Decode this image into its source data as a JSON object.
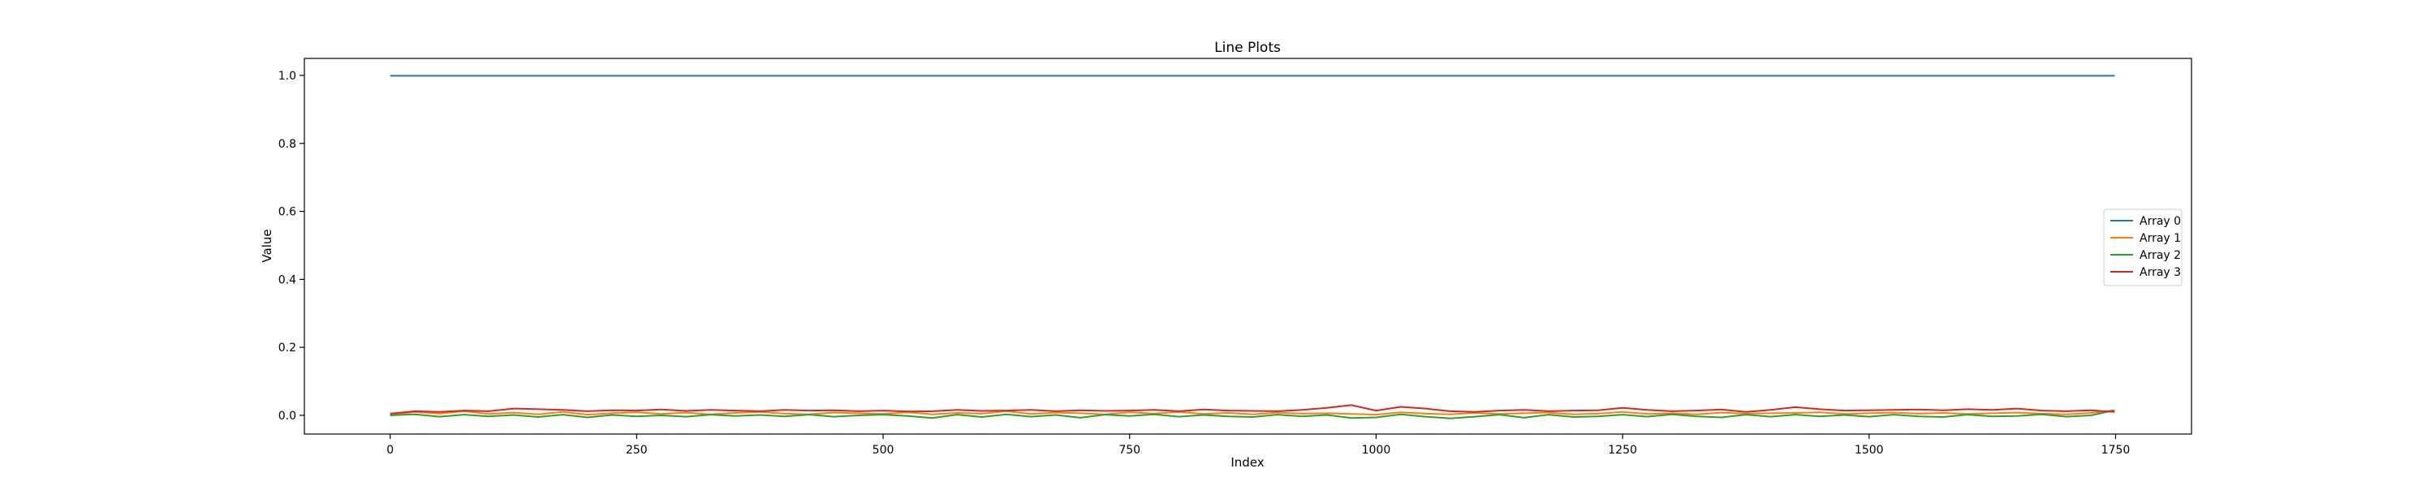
{
  "chart_data": {
    "type": "line",
    "title": "Line Plots",
    "xlabel": "Index",
    "ylabel": "Value",
    "xlim": [
      -87,
      1827
    ],
    "ylim": [
      -0.055,
      1.05
    ],
    "x_ticks": [
      0,
      250,
      500,
      750,
      1000,
      1250,
      1500,
      1750
    ],
    "y_ticks": [
      0.0,
      0.2,
      0.4,
      0.6,
      0.8,
      1.0
    ],
    "y_tick_labels": [
      "0.0",
      "0.2",
      "0.4",
      "0.6",
      "0.8",
      "1.0"
    ],
    "grid": false,
    "legend_position": "center-right",
    "x": [
      0,
      25,
      50,
      75,
      100,
      125,
      150,
      175,
      200,
      225,
      250,
      275,
      300,
      325,
      350,
      375,
      400,
      425,
      450,
      475,
      500,
      525,
      550,
      575,
      600,
      625,
      650,
      675,
      700,
      725,
      750,
      775,
      800,
      825,
      850,
      875,
      900,
      925,
      950,
      975,
      1000,
      1025,
      1050,
      1075,
      1100,
      1125,
      1150,
      1175,
      1200,
      1225,
      1250,
      1275,
      1300,
      1325,
      1350,
      1375,
      1400,
      1425,
      1450,
      1475,
      1500,
      1525,
      1550,
      1575,
      1600,
      1625,
      1650,
      1675,
      1700,
      1725,
      1749
    ],
    "series": [
      {
        "name": "Array 0",
        "color": "#1f77b4",
        "values": [
          0.999,
          0.999,
          0.999,
          0.999,
          0.999,
          0.999,
          0.999,
          0.999,
          0.999,
          0.999,
          0.999,
          0.999,
          0.999,
          0.999,
          0.999,
          0.999,
          0.999,
          0.999,
          0.999,
          0.999,
          0.999,
          0.999,
          0.999,
          0.999,
          0.999,
          0.999,
          0.999,
          0.999,
          0.999,
          0.999,
          0.999,
          0.999,
          0.999,
          0.999,
          0.999,
          0.999,
          0.999,
          0.999,
          0.999,
          0.999,
          0.999,
          0.999,
          0.999,
          0.999,
          0.999,
          0.999,
          0.999,
          0.999,
          0.999,
          0.999,
          0.999,
          0.999,
          0.999,
          0.999,
          0.999,
          0.999,
          0.999,
          0.999,
          0.999,
          0.999,
          0.999,
          0.999,
          0.999,
          0.999,
          0.999,
          0.999,
          0.999,
          0.999,
          0.999,
          0.999,
          0.999
        ]
      },
      {
        "name": "Array 1",
        "color": "#ff7f0e",
        "values": [
          0.002,
          0.01,
          0.005,
          0.012,
          0.004,
          0.008,
          0.003,
          0.01,
          0.002,
          0.006,
          0.009,
          0.004,
          0.008,
          0.003,
          0.007,
          0.01,
          0.005,
          0.003,
          0.008,
          0.006,
          0.004,
          0.009,
          0.003,
          0.007,
          0.005,
          0.012,
          0.004,
          0.008,
          0.006,
          0.003,
          0.009,
          0.005,
          0.01,
          0.004,
          0.007,
          0.003,
          0.008,
          0.005,
          0.006,
          0.004,
          0.002,
          0.009,
          0.005,
          0.003,
          0.007,
          0.004,
          0.006,
          0.008,
          0.003,
          0.005,
          0.01,
          0.004,
          0.006,
          0.003,
          0.008,
          0.005,
          0.006,
          0.007,
          0.009,
          0.004,
          0.006,
          0.008,
          0.005,
          0.007,
          0.004,
          0.006,
          0.008,
          0.005,
          0.003,
          0.007,
          0.015
        ]
      },
      {
        "name": "Array 2",
        "color": "#2ca02c",
        "values": [
          0.0,
          0.003,
          -0.004,
          0.002,
          -0.003,
          0.001,
          -0.005,
          0.002,
          -0.006,
          0.001,
          -0.003,
          0.0,
          -0.004,
          0.002,
          -0.002,
          0.001,
          -0.003,
          0.002,
          -0.004,
          0.0,
          0.002,
          -0.002,
          -0.008,
          0.002,
          -0.005,
          0.003,
          -0.004,
          0.001,
          -0.007,
          0.002,
          -0.002,
          0.003,
          -0.004,
          0.001,
          -0.003,
          -0.005,
          0.002,
          -0.003,
          0.001,
          -0.008,
          -0.006,
          0.003,
          -0.004,
          -0.009,
          -0.004,
          0.002,
          -0.007,
          0.002,
          -0.005,
          -0.003,
          0.002,
          -0.004,
          0.003,
          -0.003,
          -0.006,
          0.002,
          -0.004,
          0.002,
          -0.003,
          0.001,
          -0.004,
          0.002,
          -0.003,
          -0.005,
          0.002,
          -0.003,
          -0.002,
          0.003,
          -0.004,
          0.0,
          0.015
        ]
      },
      {
        "name": "Array 3",
        "color": "#d62728",
        "values": [
          0.005,
          0.012,
          0.01,
          0.014,
          0.012,
          0.02,
          0.018,
          0.016,
          0.012,
          0.015,
          0.014,
          0.017,
          0.013,
          0.016,
          0.014,
          0.012,
          0.016,
          0.014,
          0.015,
          0.012,
          0.014,
          0.011,
          0.012,
          0.016,
          0.013,
          0.014,
          0.016,
          0.012,
          0.015,
          0.013,
          0.014,
          0.016,
          0.012,
          0.017,
          0.014,
          0.013,
          0.012,
          0.016,
          0.022,
          0.03,
          0.014,
          0.025,
          0.02,
          0.012,
          0.01,
          0.014,
          0.016,
          0.012,
          0.014,
          0.015,
          0.022,
          0.016,
          0.012,
          0.014,
          0.017,
          0.01,
          0.016,
          0.024,
          0.018,
          0.014,
          0.015,
          0.016,
          0.017,
          0.015,
          0.018,
          0.016,
          0.02,
          0.014,
          0.012,
          0.015,
          0.01
        ]
      }
    ]
  }
}
